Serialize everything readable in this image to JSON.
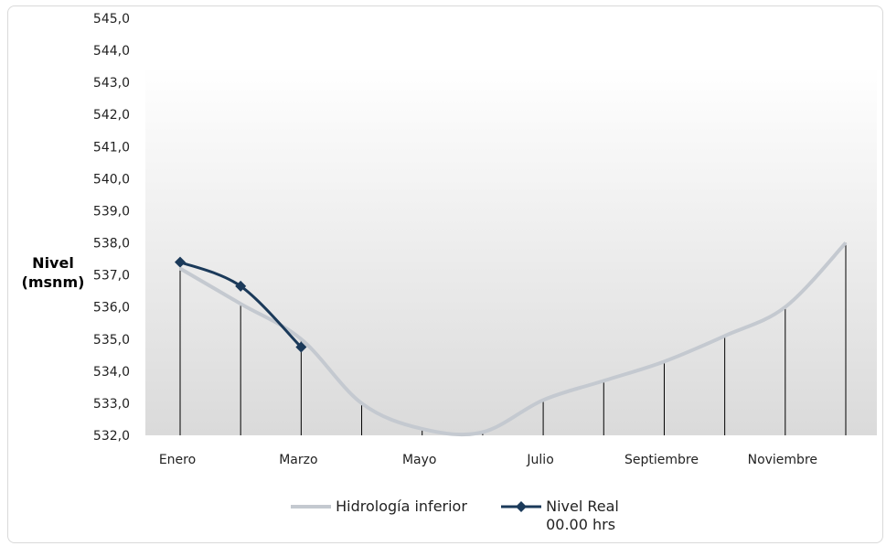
{
  "chart_data": {
    "type": "line",
    "ylabel_line1": "Nivel",
    "ylabel_line2": "(msnm)",
    "ylim": [
      532.0,
      545.0
    ],
    "yticks": [
      "532,0",
      "533,0",
      "534,0",
      "535,0",
      "536,0",
      "537,0",
      "538,0",
      "539,0",
      "540,0",
      "541,0",
      "542,0",
      "543,0",
      "544,0",
      "545,0"
    ],
    "x_labels": [
      "Enero",
      "Marzo",
      "Mayo",
      "Julio",
      "Septiembre",
      "Noviembre"
    ],
    "months_count": 12,
    "series": [
      {
        "name": "Hidrología inferior",
        "color": "#c4c9d0",
        "values": [
          537.2,
          536.1,
          535.0,
          533.0,
          532.2,
          532.1,
          533.1,
          533.7,
          534.3,
          535.1,
          536.0,
          538.0
        ]
      },
      {
        "name": "Nivel Real",
        "name_line2": "00.00 hrs",
        "color": "#1b3a5a",
        "marker": "diamond",
        "values": [
          537.4,
          536.65,
          534.75
        ]
      }
    ],
    "grid": false,
    "legend_position": "bottom"
  }
}
